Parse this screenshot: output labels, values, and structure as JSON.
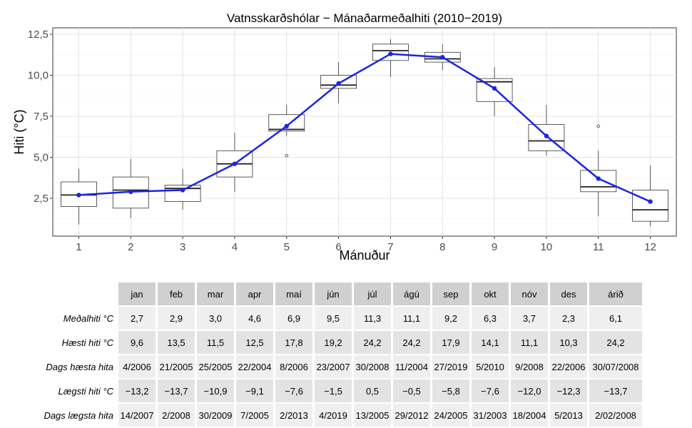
{
  "chart_data": {
    "type": "box",
    "title": "Vatnsskarðshólar − Mánaðarmeðalhiti (2010−2019)",
    "xlabel": "Mánuður",
    "ylabel": "Hiti (°C)",
    "x_categories": [
      "1",
      "2",
      "3",
      "4",
      "5",
      "6",
      "7",
      "8",
      "9",
      "10",
      "11",
      "12"
    ],
    "ylim": [
      0.0,
      13.0
    ],
    "yticks": [
      "2,5",
      "5,0",
      "7,5",
      "10,0",
      "12,5"
    ],
    "ytick_values": [
      2.5,
      5.0,
      7.5,
      10.0,
      12.5
    ],
    "grid": true,
    "boxes": [
      {
        "month": 1,
        "min": 0.9,
        "q1": 2.0,
        "median": 2.7,
        "q3": 3.5,
        "max": 4.3,
        "outliers": []
      },
      {
        "month": 2,
        "min": 1.3,
        "q1": 1.9,
        "median": 3.0,
        "q3": 3.8,
        "max": 4.9,
        "outliers": []
      },
      {
        "month": 3,
        "min": 1.8,
        "q1": 2.3,
        "median": 3.1,
        "q3": 3.3,
        "max": 4.3,
        "outliers": []
      },
      {
        "month": 4,
        "min": 2.9,
        "q1": 3.8,
        "median": 4.6,
        "q3": 5.4,
        "max": 6.5,
        "outliers": []
      },
      {
        "month": 5,
        "min": 6.3,
        "q1": 6.6,
        "median": 6.7,
        "q3": 7.6,
        "max": 8.2,
        "outliers": [
          5.1
        ]
      },
      {
        "month": 6,
        "min": 8.3,
        "q1": 9.2,
        "median": 9.4,
        "q3": 10.0,
        "max": 10.8,
        "outliers": []
      },
      {
        "month": 7,
        "min": 9.9,
        "q1": 10.9,
        "median": 11.5,
        "q3": 11.9,
        "max": 12.2,
        "outliers": []
      },
      {
        "month": 8,
        "min": 10.3,
        "q1": 10.8,
        "median": 11.0,
        "q3": 11.4,
        "max": 11.9,
        "outliers": []
      },
      {
        "month": 9,
        "min": 7.5,
        "q1": 8.4,
        "median": 9.6,
        "q3": 9.8,
        "max": 10.5,
        "outliers": []
      },
      {
        "month": 10,
        "min": 5.1,
        "q1": 5.4,
        "median": 6.0,
        "q3": 7.0,
        "max": 8.2,
        "outliers": []
      },
      {
        "month": 11,
        "min": 1.4,
        "q1": 2.9,
        "median": 3.2,
        "q3": 4.2,
        "max": 5.4,
        "outliers": [
          6.9
        ]
      },
      {
        "month": 12,
        "min": 0.8,
        "q1": 1.1,
        "median": 1.8,
        "q3": 3.0,
        "max": 4.5,
        "outliers": []
      }
    ],
    "mean_line": {
      "color": "#1a24e6",
      "values": [
        2.7,
        2.9,
        3.0,
        4.6,
        6.9,
        9.5,
        11.3,
        11.1,
        9.2,
        6.3,
        3.7,
        2.3
      ]
    }
  },
  "table": {
    "headers": [
      "jan",
      "feb",
      "mar",
      "apr",
      "maí",
      "jún",
      "júl",
      "ágú",
      "sep",
      "okt",
      "nóv",
      "des",
      "árið"
    ],
    "rows": [
      {
        "label": "Meðalhiti °C",
        "values": [
          "2,7",
          "2,9",
          "3,0",
          "4,6",
          "6,9",
          "9,5",
          "11,3",
          "11,1",
          "9,2",
          "6,3",
          "3,7",
          "2,3",
          "6,1"
        ]
      },
      {
        "label": "Hæsti hiti °C",
        "values": [
          "9,6",
          "13,5",
          "11,5",
          "12,5",
          "17,8",
          "19,2",
          "24,2",
          "24,2",
          "17,9",
          "14,1",
          "11,1",
          "10,3",
          "24,2"
        ]
      },
      {
        "label": "Dags hæsta hita",
        "values": [
          "4/2006",
          "21/2005",
          "25/2005",
          "22/2004",
          "8/2006",
          "23/2007",
          "30/2008",
          "11/2004",
          "27/2019",
          "5/2010",
          "9/2008",
          "22/2006",
          "30/07/2008"
        ]
      },
      {
        "label": "Lægsti hiti °C",
        "values": [
          "−13,2",
          "−13,7",
          "−10,9",
          "−9,1",
          "−7,6",
          "−1,5",
          "0,5",
          "−0,5",
          "−5,8",
          "−7,6",
          "−12,0",
          "−12,3",
          "−13,7"
        ]
      },
      {
        "label": "Dags lægsta hita",
        "values": [
          "14/2007",
          "2/2008",
          "30/2009",
          "7/2005",
          "2/2013",
          "4/2019",
          "13/2005",
          "29/2012",
          "24/2005",
          "31/2003",
          "18/2004",
          "5/2013",
          "2/02/2008"
        ]
      }
    ]
  }
}
